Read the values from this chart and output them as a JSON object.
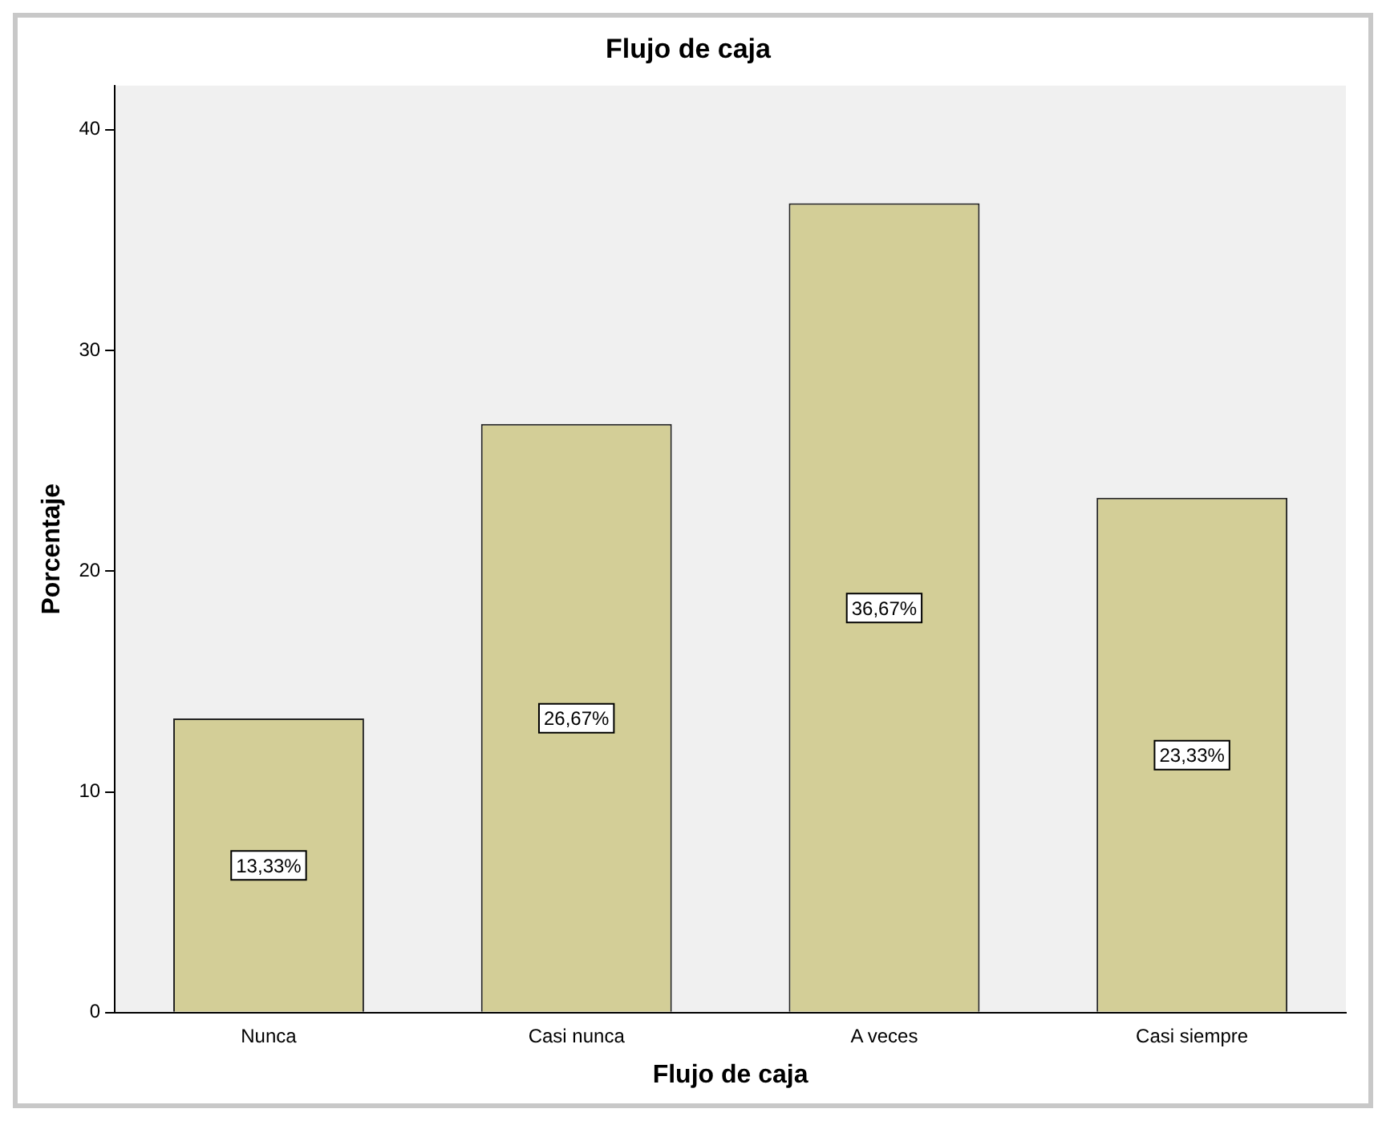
{
  "chart_data": {
    "type": "bar",
    "title": "Flujo de caja",
    "xlabel": "Flujo de caja",
    "ylabel": "Porcentaje",
    "categories": [
      "Nunca",
      "Casi nunca",
      "A veces",
      "Casi siempre"
    ],
    "values": [
      13.33,
      26.67,
      36.67,
      23.33
    ],
    "value_labels": [
      "13,33%",
      "26,67%",
      "36,67%",
      "23,33%"
    ],
    "color": "#d3ce97",
    "ylim": [
      0,
      42
    ],
    "yticks": [
      0,
      10,
      20,
      30,
      40
    ],
    "grid": false,
    "legend": false
  }
}
